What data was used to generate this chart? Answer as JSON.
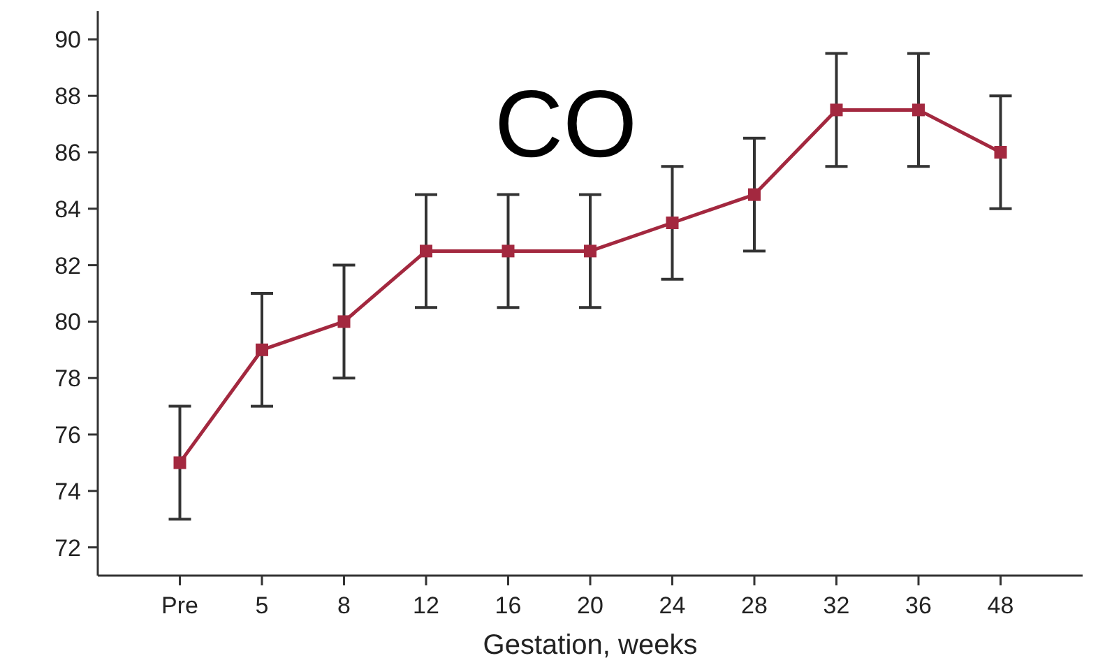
{
  "chart_data": {
    "type": "line",
    "title": "CO",
    "xlabel": "Gestation, weeks",
    "categories": [
      "Pre",
      "5",
      "8",
      "12",
      "16",
      "20",
      "24",
      "28",
      "32",
      "36",
      "48"
    ],
    "series": [
      {
        "color": "#a3283f",
        "values": [
          75,
          79,
          80,
          82.5,
          82.5,
          82.5,
          83.5,
          84.5,
          87.5,
          87.5,
          86
        ],
        "errors": [
          2,
          2,
          2,
          2,
          2,
          2,
          2,
          2,
          2,
          2,
          2
        ]
      }
    ],
    "ylim": [
      71,
      91
    ],
    "yticks": [
      72,
      74,
      76,
      78,
      80,
      82,
      84,
      86,
      88,
      90
    ],
    "marker": "square",
    "grid": false
  }
}
